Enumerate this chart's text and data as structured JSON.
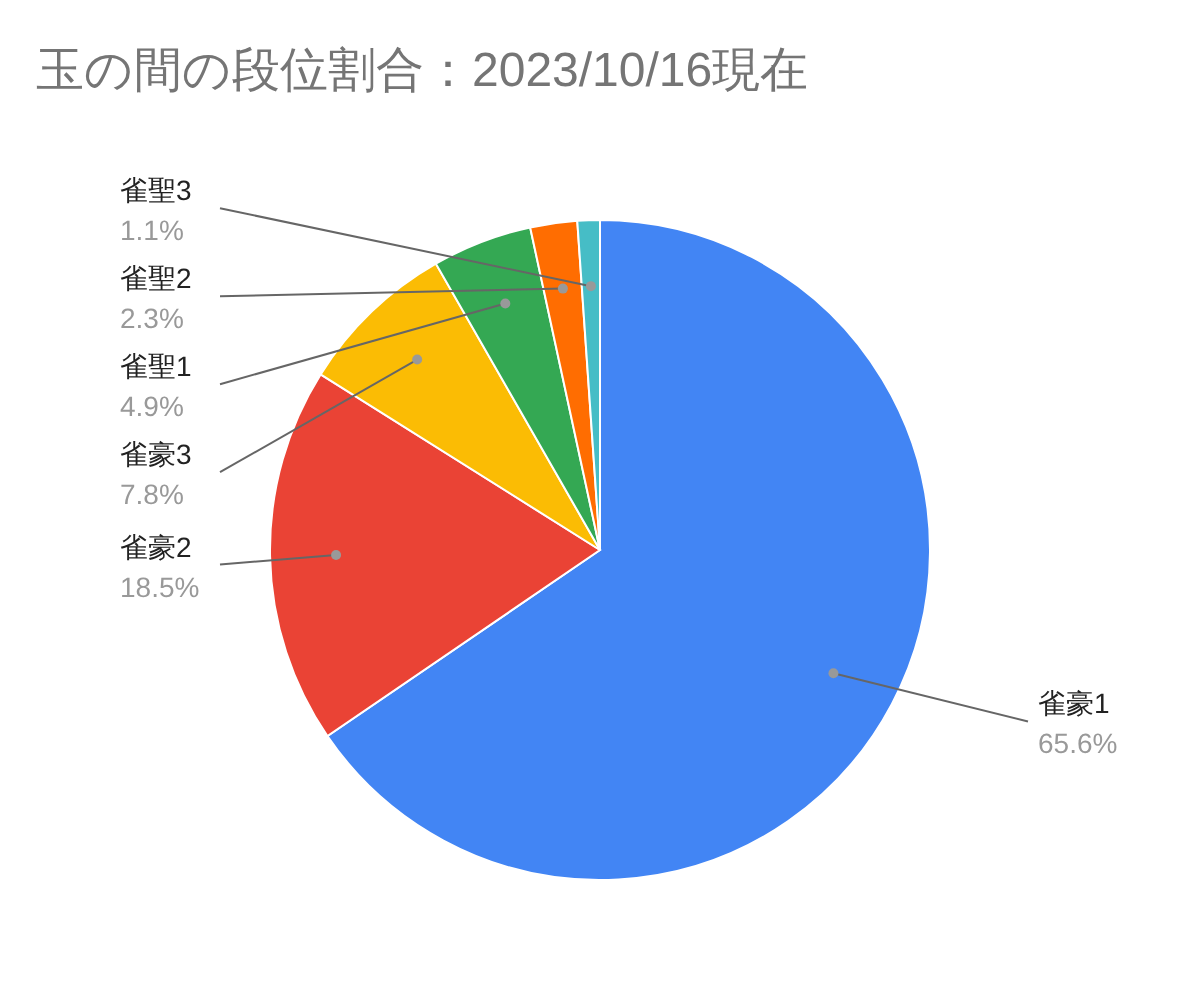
{
  "chart_data": {
    "type": "pie",
    "title": "玉の間の段位割合：2023/10/16現在",
    "categories": [
      "雀豪1",
      "雀豪2",
      "雀豪3",
      "雀聖1",
      "雀聖2",
      "雀聖3"
    ],
    "values": [
      65.6,
      18.5,
      7.8,
      4.9,
      2.3,
      1.1
    ],
    "colors": [
      "#4285f4",
      "#ea4335",
      "#fbbc04",
      "#34a853",
      "#ff6d01",
      "#46bdc6"
    ],
    "value_labels": [
      "65.6%",
      "18.5%",
      "7.8%",
      "4.9%",
      "2.3%",
      "1.1%"
    ]
  }
}
